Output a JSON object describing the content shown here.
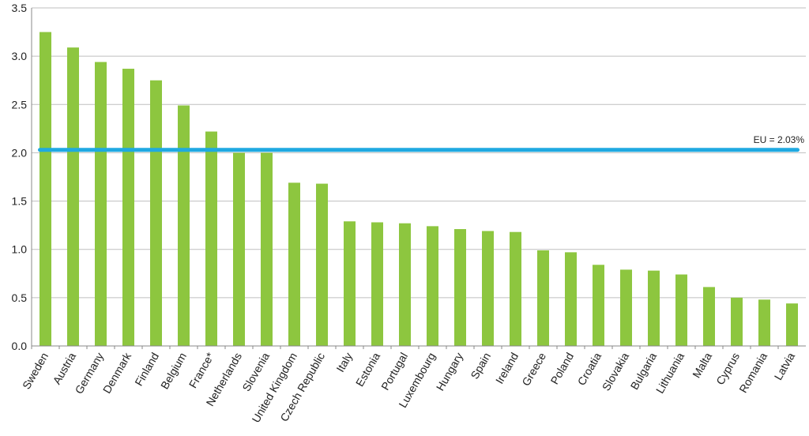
{
  "chart_data": {
    "type": "bar",
    "categories": [
      "Sweden",
      "Austria",
      "Germany",
      "Denmark",
      "Finland",
      "Belgium",
      "France*",
      "Netherlands",
      "Slovenia",
      "United Kingdom",
      "Czech Republic",
      "Italy",
      "Estonia",
      "Portugal",
      "Luxembourg",
      "Hungary",
      "Spain",
      "Ireland",
      "Greece",
      "Poland",
      "Croatia",
      "Slovakia",
      "Bulgaria",
      "Lithuania",
      "Malta",
      "Cyprus",
      "Romania",
      "Latvia"
    ],
    "values": [
      3.25,
      3.09,
      2.94,
      2.87,
      2.75,
      2.49,
      2.22,
      2.0,
      2.0,
      1.69,
      1.68,
      1.29,
      1.28,
      1.27,
      1.24,
      1.21,
      1.19,
      1.18,
      0.99,
      0.97,
      0.84,
      0.79,
      0.78,
      0.74,
      0.61,
      0.5,
      0.48,
      0.44
    ],
    "ylim": [
      0,
      3.5
    ],
    "yticks": [
      "0.0",
      "0.5",
      "1.0",
      "1.5",
      "2.0",
      "2.5",
      "3.0",
      "3.5"
    ],
    "grid": true,
    "bar_color": "#8dc63f",
    "reference_line": {
      "value": 2.03,
      "label": "EU = 2.03%",
      "color": "#1fa9e1"
    }
  }
}
